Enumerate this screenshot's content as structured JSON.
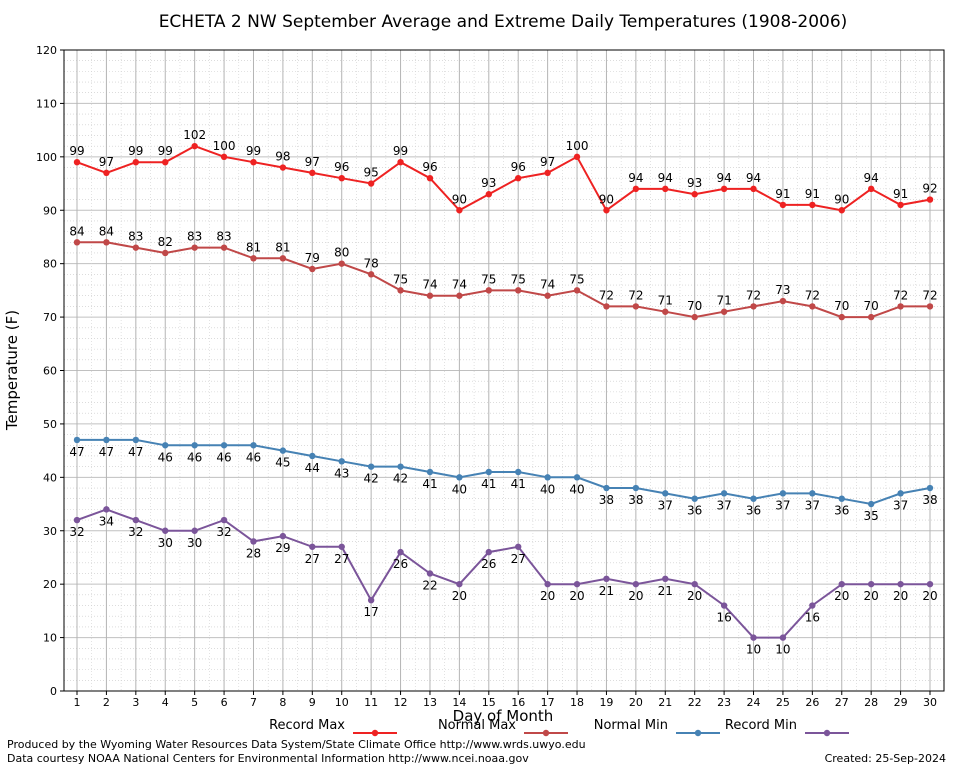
{
  "chart_data": {
    "type": "line",
    "title": "ECHETA 2 NW September Average and Extreme Daily Temperatures (1908-2006)",
    "xlabel": "Day of Month",
    "ylabel": "Temperature (F)",
    "ylim": [
      0,
      120
    ],
    "xlim": [
      1,
      30
    ],
    "yticks": [
      0,
      10,
      20,
      30,
      40,
      50,
      60,
      70,
      80,
      90,
      100,
      110,
      120
    ],
    "x": [
      1,
      2,
      3,
      4,
      5,
      6,
      7,
      8,
      9,
      10,
      11,
      12,
      13,
      14,
      15,
      16,
      17,
      18,
      19,
      20,
      21,
      22,
      23,
      24,
      25,
      26,
      27,
      28,
      29,
      30
    ],
    "grid": true,
    "legend_position": "bottom",
    "series": [
      {
        "name": "Record Max",
        "color": "#ee2222",
        "values": [
          99,
          97,
          99,
          99,
          102,
          100,
          99,
          98,
          97,
          96,
          95,
          99,
          96,
          90,
          93,
          96,
          97,
          100,
          90,
          94,
          94,
          93,
          94,
          94,
          91,
          91,
          90,
          94,
          91,
          92
        ]
      },
      {
        "name": "Normal Max",
        "color": "#c04848",
        "values": [
          84,
          84,
          83,
          82,
          83,
          83,
          81,
          81,
          79,
          80,
          78,
          75,
          74,
          74,
          75,
          75,
          74,
          75,
          72,
          72,
          71,
          70,
          71,
          72,
          73,
          72,
          70,
          70,
          72,
          72
        ]
      },
      {
        "name": "Normal Min",
        "color": "#4682b4",
        "values": [
          47,
          47,
          47,
          46,
          46,
          46,
          46,
          45,
          44,
          43,
          42,
          42,
          41,
          40,
          41,
          41,
          40,
          40,
          38,
          38,
          37,
          36,
          37,
          36,
          37,
          37,
          36,
          35,
          37,
          38
        ]
      },
      {
        "name": "Record Min",
        "color": "#7b559a",
        "values": [
          32,
          34,
          32,
          30,
          30,
          32,
          28,
          29,
          27,
          27,
          17,
          26,
          22,
          20,
          26,
          27,
          20,
          20,
          21,
          20,
          21,
          20,
          16,
          10,
          10,
          16,
          20,
          20,
          20,
          20
        ]
      }
    ]
  },
  "footer": {
    "produced_by": "Produced by the Wyoming Water Resources Data System/State Climate Office http://www.wrds.uwyo.edu",
    "data_courtesy": "Data courtesy NOAA National Centers for Environmental Information http://www.ncei.noaa.gov",
    "created": "Created:  25-Sep-2024"
  }
}
